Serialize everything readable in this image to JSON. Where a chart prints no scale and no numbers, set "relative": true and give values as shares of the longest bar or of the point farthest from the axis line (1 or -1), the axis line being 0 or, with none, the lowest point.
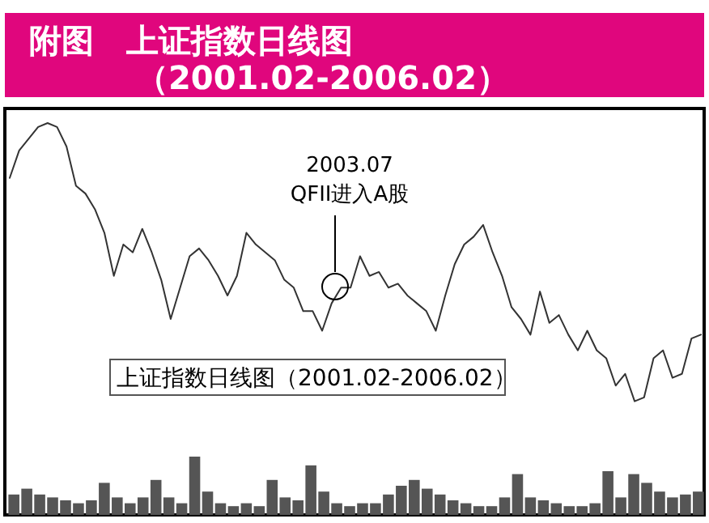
{
  "chart_data": [
    {
      "type": "line",
      "title": "附图　上证指数日线图",
      "subtitle": "（2001.02-2006.02）",
      "relative": true,
      "annotations": [
        "2003.07",
        "QFII进入A股",
        "上证指数日线图（2001.02-2006.02）"
      ],
      "categories": [
        null,
        null,
        null,
        null,
        null,
        null,
        null,
        null,
        null,
        null,
        null,
        null,
        null,
        null,
        null,
        null,
        null,
        null,
        null,
        null,
        null,
        null,
        null,
        null,
        null,
        null,
        null,
        null,
        null,
        null,
        null,
        null,
        null,
        null,
        null,
        null,
        null,
        null,
        null,
        null,
        null,
        null,
        null,
        null,
        null,
        null,
        null,
        null,
        null,
        null,
        null,
        null,
        null,
        null,
        null,
        null,
        null,
        null,
        null,
        null,
        null,
        null,
        null,
        null,
        null,
        null,
        null,
        null,
        null,
        null,
        null,
        null,
        null,
        null
      ],
      "series": [
        {
          "color": "#333333",
          "values": [
            0.86,
            0.93,
            0.96,
            0.99,
            1.0,
            0.99,
            0.94,
            0.84,
            0.82,
            0.78,
            0.72,
            0.61,
            0.69,
            0.67,
            0.73,
            0.67,
            0.6,
            0.5,
            0.58,
            0.66,
            0.68,
            0.65,
            0.61,
            0.56,
            0.61,
            0.72,
            0.69,
            0.67,
            0.65,
            0.6,
            0.58,
            0.52,
            0.52,
            0.47,
            0.54,
            0.58,
            0.58,
            0.66,
            0.61,
            0.62,
            0.58,
            0.59,
            0.56,
            0.54,
            0.52,
            0.47,
            0.56,
            0.64,
            0.69,
            0.71,
            0.74,
            0.67,
            0.61,
            0.53,
            0.5,
            0.46,
            0.57,
            0.49,
            0.51,
            0.46,
            0.42,
            0.47,
            0.42,
            0.4,
            0.33,
            0.36,
            0.29,
            0.3,
            0.4,
            0.42,
            0.35,
            0.36,
            0.45,
            0.46
          ]
        }
      ]
    },
    {
      "type": "bar",
      "relative": true,
      "color": "#555555",
      "categories": [
        null,
        null,
        null,
        null,
        null,
        null,
        null,
        null,
        null,
        null,
        null,
        null,
        null,
        null,
        null,
        null,
        null,
        null,
        null,
        null,
        null,
        null,
        null,
        null,
        null,
        null,
        null,
        null,
        null,
        null,
        null,
        null,
        null,
        null,
        null,
        null,
        null,
        null,
        null,
        null,
        null,
        null,
        null,
        null,
        null,
        null,
        null,
        null,
        null,
        null,
        null,
        null,
        null,
        null
      ],
      "values": [
        0.35,
        0.45,
        0.35,
        0.3,
        0.25,
        0.2,
        0.25,
        0.55,
        0.3,
        0.2,
        0.3,
        0.6,
        0.3,
        0.2,
        1.0,
        0.4,
        0.2,
        0.15,
        0.2,
        0.15,
        0.6,
        0.3,
        0.25,
        0.85,
        0.4,
        0.2,
        0.15,
        0.2,
        0.2,
        0.35,
        0.5,
        0.6,
        0.45,
        0.35,
        0.25,
        0.2,
        0.15,
        0.15,
        0.3,
        0.7,
        0.3,
        0.25,
        0.2,
        0.15,
        0.15,
        0.2,
        0.75,
        0.3,
        0.7,
        0.55,
        0.4,
        0.3,
        0.35,
        0.4
      ]
    }
  ]
}
